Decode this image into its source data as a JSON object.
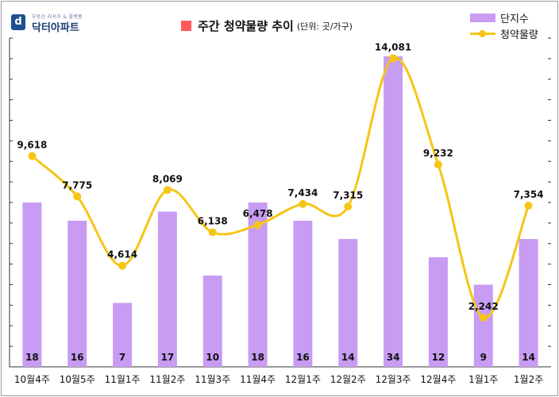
{
  "logo": {
    "mark": "d",
    "subtitle": "부동산 리서치 & 플랫폼",
    "name": "닥터아파트"
  },
  "header": {
    "title": "주간 청약물량 추이",
    "unit": "(단위: 곳/가구)",
    "title_marker_color": "#ff5a5a"
  },
  "legend": {
    "bar_label": "단지수",
    "line_label": "청약물량"
  },
  "colors": {
    "bar": "#c89cf3",
    "line": "#f5c518"
  },
  "chart_data": {
    "type": "bar+line",
    "categories": [
      "10월4주",
      "10월5주",
      "11월1주",
      "11월2주",
      "11월3주",
      "11월4주",
      "12월1주",
      "12월2주",
      "12월3주",
      "12월4주",
      "1월1주",
      "1월2주"
    ],
    "series": [
      {
        "name": "단지수",
        "type": "bar",
        "axis": "left",
        "values": [
          18,
          16,
          7,
          17,
          10,
          18,
          16,
          14,
          34,
          12,
          9,
          14
        ]
      },
      {
        "name": "청약물량",
        "type": "line",
        "axis": "right",
        "smooth": true,
        "values": [
          9618,
          7775,
          4614,
          8069,
          6138,
          6478,
          7434,
          7315,
          14081,
          9232,
          2242,
          7354
        ]
      }
    ],
    "bar_labels": [
      "18",
      "16",
      "7",
      "17",
      "10",
      "18",
      "16",
      "14",
      "34",
      "12",
      "9",
      "14"
    ],
    "line_labels": [
      "9,618",
      "7,775",
      "4,614",
      "8,069",
      "6,138",
      "6,478",
      "7,434",
      "7,315",
      "14,081",
      "9,232",
      "2,242",
      "7,354"
    ],
    "ylim_bar": [
      0,
      36
    ],
    "ylim_line": [
      0,
      15000
    ],
    "grid": false,
    "legend_position": "top-right"
  }
}
